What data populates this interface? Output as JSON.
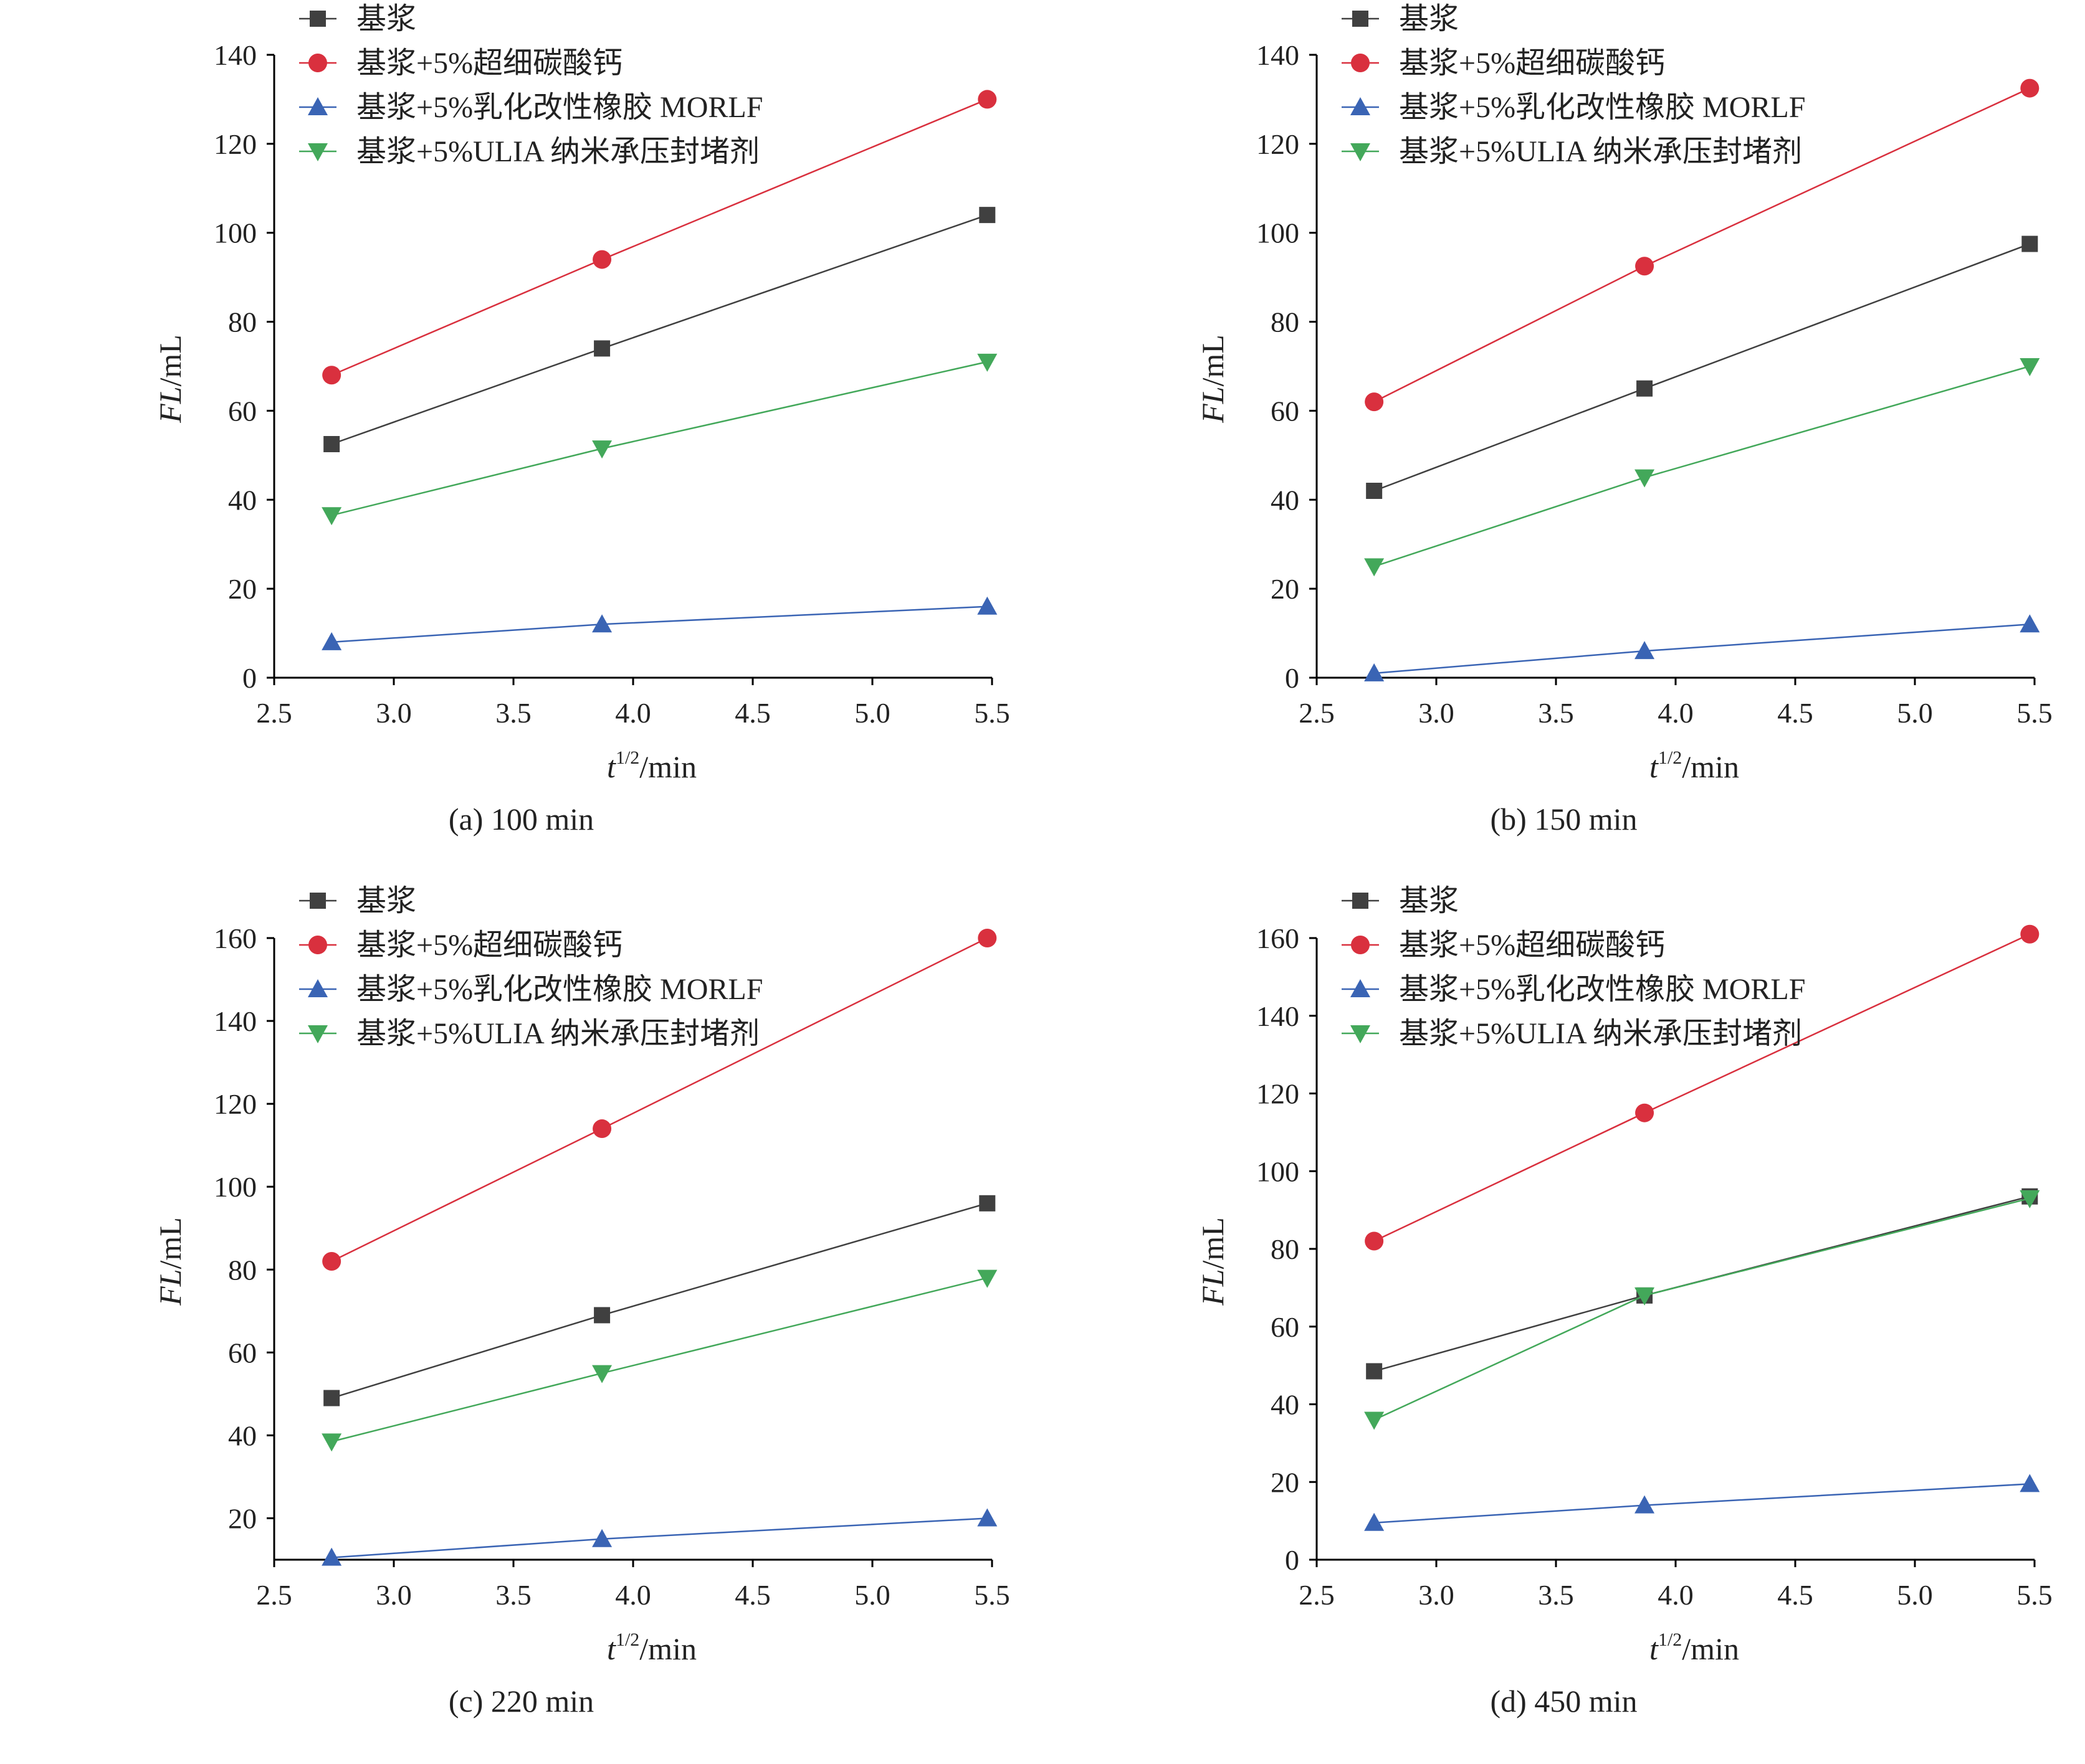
{
  "chart_data": [
    {
      "type": "line",
      "caption": "(a) 100 min",
      "xlabel": "t1/2/min",
      "ylabel": "FL/mL",
      "xlim": [
        2.5,
        5.5
      ],
      "ylim": [
        0,
        140
      ],
      "xticks": [
        2.5,
        3.0,
        3.5,
        4.0,
        4.5,
        5.0,
        5.5
      ],
      "yticks": [
        0,
        20,
        40,
        60,
        80,
        100,
        120,
        140
      ],
      "x": [
        2.74,
        3.87,
        5.48
      ],
      "series": [
        {
          "name": "基浆",
          "color": "#404040",
          "marker": "square",
          "values": [
            52.5,
            74,
            104
          ]
        },
        {
          "name": "基浆+5%超细碳酸钙",
          "color": "#d9303e",
          "marker": "circle",
          "values": [
            68,
            94,
            130
          ]
        },
        {
          "name": "基浆+5%乳化改性橡胶 MORLF",
          "color": "#3a64b4",
          "marker": "triangle-up",
          "values": [
            8,
            12,
            16
          ]
        },
        {
          "name": "基浆+5%ULIA 纳米承压封堵剂",
          "color": "#43a85a",
          "marker": "triangle-down",
          "values": [
            36.5,
            51.5,
            71
          ]
        }
      ],
      "legend": "top-left"
    },
    {
      "type": "line",
      "caption": "(b) 150 min",
      "xlabel": "t1/2/min",
      "ylabel": "FL/mL",
      "xlim": [
        2.5,
        5.5
      ],
      "ylim": [
        0,
        140
      ],
      "xticks": [
        2.5,
        3.0,
        3.5,
        4.0,
        4.5,
        5.0,
        5.5
      ],
      "yticks": [
        0,
        20,
        40,
        60,
        80,
        100,
        120,
        140
      ],
      "x": [
        2.74,
        3.87,
        5.48
      ],
      "series": [
        {
          "name": "基浆",
          "color": "#404040",
          "marker": "square",
          "values": [
            42,
            65,
            97.5
          ]
        },
        {
          "name": "基浆+5%超细碳酸钙",
          "color": "#d9303e",
          "marker": "circle",
          "values": [
            62,
            92.5,
            132.5
          ]
        },
        {
          "name": "基浆+5%乳化改性橡胶 MORLF",
          "color": "#3a64b4",
          "marker": "triangle-up",
          "values": [
            1,
            6,
            12
          ]
        },
        {
          "name": "基浆+5%ULIA 纳米承压封堵剂",
          "color": "#43a85a",
          "marker": "triangle-down",
          "values": [
            25,
            45,
            70
          ]
        }
      ],
      "legend": "top-left"
    },
    {
      "type": "line",
      "caption": "(c) 220 min",
      "xlabel": "t1/2/min",
      "ylabel": "FL/mL",
      "xlim": [
        2.5,
        5.5
      ],
      "ylim": [
        10,
        160
      ],
      "xticks": [
        2.5,
        3.0,
        3.5,
        4.0,
        4.5,
        5.0,
        5.5
      ],
      "yticks": [
        20,
        40,
        60,
        80,
        100,
        120,
        140,
        160
      ],
      "x": [
        2.74,
        3.87,
        5.48
      ],
      "series": [
        {
          "name": "基浆",
          "color": "#404040",
          "marker": "square",
          "values": [
            49,
            69,
            96
          ]
        },
        {
          "name": "基浆+5%超细碳酸钙",
          "color": "#d9303e",
          "marker": "circle",
          "values": [
            82,
            114,
            160
          ]
        },
        {
          "name": "基浆+5%乳化改性橡胶 MORLF",
          "color": "#3a64b4",
          "marker": "triangle-up",
          "values": [
            10.5,
            15,
            20
          ]
        },
        {
          "name": "基浆+5%ULIA 纳米承压封堵剂",
          "color": "#43a85a",
          "marker": "triangle-down",
          "values": [
            38.5,
            55,
            78
          ]
        }
      ],
      "legend": "top-left"
    },
    {
      "type": "line",
      "caption": "(d) 450 min",
      "xlabel": "t1/2/min",
      "ylabel": "FL/mL",
      "xlim": [
        2.5,
        5.5
      ],
      "ylim": [
        0,
        160
      ],
      "xticks": [
        2.5,
        3.0,
        3.5,
        4.0,
        4.5,
        5.0,
        5.5
      ],
      "yticks": [
        0,
        20,
        40,
        60,
        80,
        100,
        120,
        140,
        160
      ],
      "x": [
        2.74,
        3.87,
        5.48
      ],
      "series": [
        {
          "name": "基浆",
          "color": "#404040",
          "marker": "square",
          "values": [
            48.5,
            68,
            93.5
          ]
        },
        {
          "name": "基浆+5%超细碳酸钙",
          "color": "#d9303e",
          "marker": "circle",
          "values": [
            82,
            115,
            161
          ]
        },
        {
          "name": "基浆+5%乳化改性橡胶 MORLF",
          "color": "#3a64b4",
          "marker": "triangle-up",
          "values": [
            9.5,
            14,
            19.5
          ]
        },
        {
          "name": "基浆+5%ULIA 纳米承压封堵剂",
          "color": "#43a85a",
          "marker": "triangle-down",
          "values": [
            36,
            68,
            93
          ]
        }
      ],
      "legend": "top-left"
    }
  ]
}
